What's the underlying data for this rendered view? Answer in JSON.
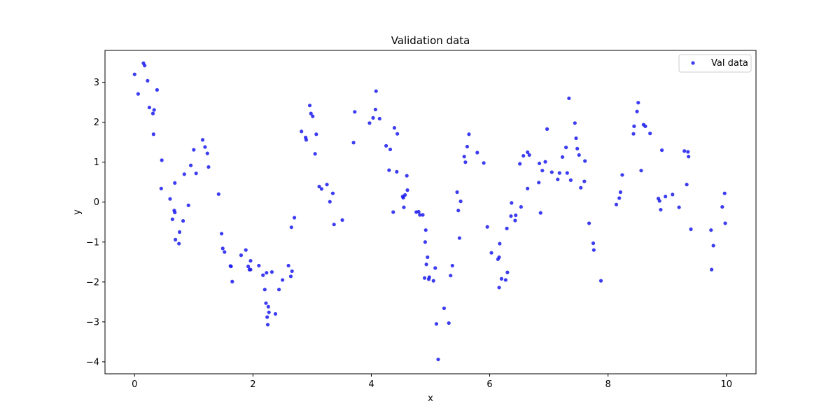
{
  "chart_data": {
    "type": "scatter",
    "title": "Validation data",
    "xlabel": "x",
    "ylabel": "y",
    "xlim": [
      -0.5,
      10.5
    ],
    "ylim": [
      -4.3,
      3.8
    ],
    "xticks": [
      "0",
      "2",
      "4",
      "6",
      "8",
      "10"
    ],
    "yticks": [
      "−4",
      "−3",
      "−2",
      "−1",
      "0",
      "1",
      "2",
      "3"
    ],
    "grid": false,
    "legend": {
      "position": "top-right"
    },
    "series": [
      {
        "name": "Val data",
        "color": "#1a1aee",
        "points": [
          [
            0.0,
            3.2
          ],
          [
            0.06,
            2.71
          ],
          [
            0.15,
            3.48
          ],
          [
            0.17,
            3.42
          ],
          [
            0.22,
            3.04
          ],
          [
            0.25,
            2.37
          ],
          [
            0.31,
            2.22
          ],
          [
            0.32,
            1.7
          ],
          [
            0.33,
            2.31
          ],
          [
            0.38,
            2.81
          ],
          [
            0.45,
            0.34
          ],
          [
            0.46,
            1.05
          ],
          [
            0.6,
            0.08
          ],
          [
            0.64,
            -0.43
          ],
          [
            0.67,
            -0.21
          ],
          [
            0.68,
            -0.26
          ],
          [
            0.68,
            0.48
          ],
          [
            0.69,
            -0.94
          ],
          [
            0.75,
            -1.04
          ],
          [
            0.76,
            -0.75
          ],
          [
            0.82,
            -0.47
          ],
          [
            0.84,
            0.7
          ],
          [
            0.91,
            -0.08
          ],
          [
            0.95,
            0.92
          ],
          [
            1.0,
            1.31
          ],
          [
            1.04,
            0.72
          ],
          [
            1.15,
            1.56
          ],
          [
            1.19,
            1.38
          ],
          [
            1.23,
            1.22
          ],
          [
            1.25,
            0.88
          ],
          [
            1.42,
            0.2
          ],
          [
            1.47,
            -0.79
          ],
          [
            1.49,
            -1.16
          ],
          [
            1.52,
            -1.25
          ],
          [
            1.62,
            -1.6
          ],
          [
            1.63,
            -1.61
          ],
          [
            1.65,
            -1.99
          ],
          [
            1.8,
            -1.33
          ],
          [
            1.88,
            -1.2
          ],
          [
            1.92,
            -1.61
          ],
          [
            1.94,
            -1.69
          ],
          [
            1.96,
            -1.47
          ],
          [
            1.96,
            -1.69
          ],
          [
            2.1,
            -1.59
          ],
          [
            2.17,
            -1.83
          ],
          [
            2.2,
            -2.19
          ],
          [
            2.22,
            -2.53
          ],
          [
            2.23,
            -1.77
          ],
          [
            2.24,
            -2.88
          ],
          [
            2.25,
            -3.07
          ],
          [
            2.26,
            -2.62
          ],
          [
            2.27,
            -2.76
          ],
          [
            2.32,
            -1.75
          ],
          [
            2.38,
            -2.8
          ],
          [
            2.44,
            -2.19
          ],
          [
            2.5,
            -1.95
          ],
          [
            2.6,
            -1.59
          ],
          [
            2.64,
            -1.86
          ],
          [
            2.65,
            -0.63
          ],
          [
            2.66,
            -1.73
          ],
          [
            2.7,
            -0.39
          ],
          [
            2.82,
            1.77
          ],
          [
            2.89,
            1.62
          ],
          [
            2.9,
            1.56
          ],
          [
            2.96,
            2.42
          ],
          [
            2.98,
            2.22
          ],
          [
            3.01,
            2.15
          ],
          [
            3.05,
            1.21
          ],
          [
            3.07,
            1.7
          ],
          [
            3.12,
            0.39
          ],
          [
            3.16,
            0.33
          ],
          [
            3.25,
            0.44
          ],
          [
            3.3,
            0.01
          ],
          [
            3.35,
            0.22
          ],
          [
            3.37,
            -0.56
          ],
          [
            3.51,
            -0.45
          ],
          [
            3.7,
            1.49
          ],
          [
            3.72,
            2.26
          ],
          [
            3.97,
            1.98
          ],
          [
            4.03,
            2.11
          ],
          [
            4.07,
            2.32
          ],
          [
            4.08,
            2.78
          ],
          [
            4.14,
            2.09
          ],
          [
            4.25,
            1.41
          ],
          [
            4.3,
            0.8
          ],
          [
            4.32,
            1.32
          ],
          [
            4.37,
            -0.25
          ],
          [
            4.39,
            1.86
          ],
          [
            4.43,
            0.76
          ],
          [
            4.44,
            1.71
          ],
          [
            4.53,
            0.14
          ],
          [
            4.54,
            0.11
          ],
          [
            4.55,
            -0.13
          ],
          [
            4.57,
            0.18
          ],
          [
            4.6,
            0.66
          ],
          [
            4.61,
            0.3
          ],
          [
            4.76,
            -0.25
          ],
          [
            4.8,
            -0.24
          ],
          [
            4.82,
            -0.32
          ],
          [
            4.87,
            -0.32
          ],
          [
            4.9,
            -1.9
          ],
          [
            4.91,
            -1.0
          ],
          [
            4.92,
            -0.7
          ],
          [
            4.93,
            -1.56
          ],
          [
            4.95,
            -1.38
          ],
          [
            4.97,
            -1.93
          ],
          [
            4.98,
            -1.88
          ],
          [
            5.05,
            -1.97
          ],
          [
            5.08,
            -1.65
          ],
          [
            5.1,
            -3.05
          ],
          [
            5.13,
            -3.94
          ],
          [
            5.23,
            -2.66
          ],
          [
            5.31,
            -3.03
          ],
          [
            5.34,
            -1.84
          ],
          [
            5.37,
            -1.59
          ],
          [
            5.45,
            0.25
          ],
          [
            5.47,
            -0.21
          ],
          [
            5.49,
            -0.9
          ],
          [
            5.51,
            0.02
          ],
          [
            5.57,
            1.14
          ],
          [
            5.59,
            1.0
          ],
          [
            5.62,
            1.39
          ],
          [
            5.65,
            1.7
          ],
          [
            5.79,
            1.24
          ],
          [
            5.9,
            0.98
          ],
          [
            5.96,
            -0.62
          ],
          [
            6.03,
            -1.27
          ],
          [
            6.14,
            -1.43
          ],
          [
            6.16,
            -1.38
          ],
          [
            6.16,
            -2.14
          ],
          [
            6.17,
            -1.04
          ],
          [
            6.2,
            -1.92
          ],
          [
            6.27,
            -1.95
          ],
          [
            6.29,
            -0.66
          ],
          [
            6.3,
            -1.76
          ],
          [
            6.36,
            -0.35
          ],
          [
            6.37,
            -0.02
          ],
          [
            6.43,
            -0.46
          ],
          [
            6.44,
            -0.33
          ],
          [
            6.51,
            0.96
          ],
          [
            6.53,
            -0.12
          ],
          [
            6.57,
            1.16
          ],
          [
            6.64,
            0.34
          ],
          [
            6.64,
            1.25
          ],
          [
            6.67,
            1.18
          ],
          [
            6.83,
            0.49
          ],
          [
            6.84,
            0.97
          ],
          [
            6.86,
            -0.27
          ],
          [
            6.89,
            0.79
          ],
          [
            6.94,
            1.01
          ],
          [
            6.97,
            1.83
          ],
          [
            7.05,
            0.75
          ],
          [
            7.15,
            0.57
          ],
          [
            7.18,
            0.73
          ],
          [
            7.23,
            1.13
          ],
          [
            7.29,
            1.37
          ],
          [
            7.31,
            0.73
          ],
          [
            7.34,
            2.6
          ],
          [
            7.37,
            0.55
          ],
          [
            7.44,
            1.98
          ],
          [
            7.46,
            1.6
          ],
          [
            7.48,
            1.34
          ],
          [
            7.51,
            1.18
          ],
          [
            7.54,
            0.36
          ],
          [
            7.6,
            0.52
          ],
          [
            7.61,
            1.03
          ],
          [
            7.68,
            -0.53
          ],
          [
            7.75,
            -1.03
          ],
          [
            7.76,
            -1.2
          ],
          [
            7.88,
            -1.97
          ],
          [
            8.14,
            -0.06
          ],
          [
            8.19,
            0.1
          ],
          [
            8.21,
            0.25
          ],
          [
            8.24,
            0.68
          ],
          [
            8.43,
            1.71
          ],
          [
            8.44,
            1.9
          ],
          [
            8.49,
            2.27
          ],
          [
            8.51,
            2.49
          ],
          [
            8.56,
            0.79
          ],
          [
            8.6,
            1.94
          ],
          [
            8.63,
            1.9
          ],
          [
            8.71,
            1.72
          ],
          [
            8.85,
            0.09
          ],
          [
            8.87,
            0.03
          ],
          [
            8.89,
            -0.19
          ],
          [
            8.91,
            1.3
          ],
          [
            8.97,
            0.14
          ],
          [
            9.09,
            0.19
          ],
          [
            9.2,
            -0.13
          ],
          [
            9.29,
            1.28
          ],
          [
            9.33,
            0.44
          ],
          [
            9.35,
            1.26
          ],
          [
            9.36,
            1.14
          ],
          [
            9.4,
            -0.68
          ],
          [
            9.74,
            -0.7
          ],
          [
            9.75,
            -1.69
          ],
          [
            9.78,
            -1.09
          ],
          [
            9.93,
            -0.12
          ],
          [
            9.97,
            0.22
          ],
          [
            9.98,
            -0.53
          ]
        ]
      }
    ]
  }
}
